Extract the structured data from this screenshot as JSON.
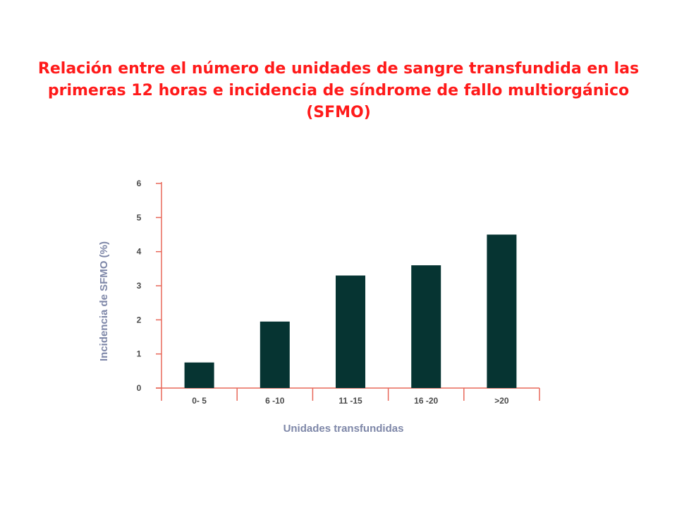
{
  "slide": {
    "title": "Relación entre el número de unidades de sangre transfundida en las\nprimeras 12 horas e incidencia de síndrome de fallo multiorgánico\n(SFMO)"
  },
  "colors": {
    "title": "#ff1a1a",
    "bar": "#063432",
    "axis": "#e8685a",
    "axis_label": "#7e87a8",
    "tick_label": "#4a4a4a"
  },
  "chart_data": {
    "type": "bar",
    "title": "",
    "xlabel": "Unidades transfundidas",
    "ylabel": "Incidencia de SFMO (%)",
    "categories": [
      "0- 5",
      "6 -10",
      "11 -15",
      "16 -20",
      ">20"
    ],
    "values": [
      0.75,
      1.95,
      3.3,
      3.6,
      4.5
    ],
    "ylim": [
      0,
      6
    ],
    "yticks": [
      0,
      1,
      2,
      3,
      4,
      5,
      6
    ],
    "grid": false,
    "legend": "none"
  }
}
